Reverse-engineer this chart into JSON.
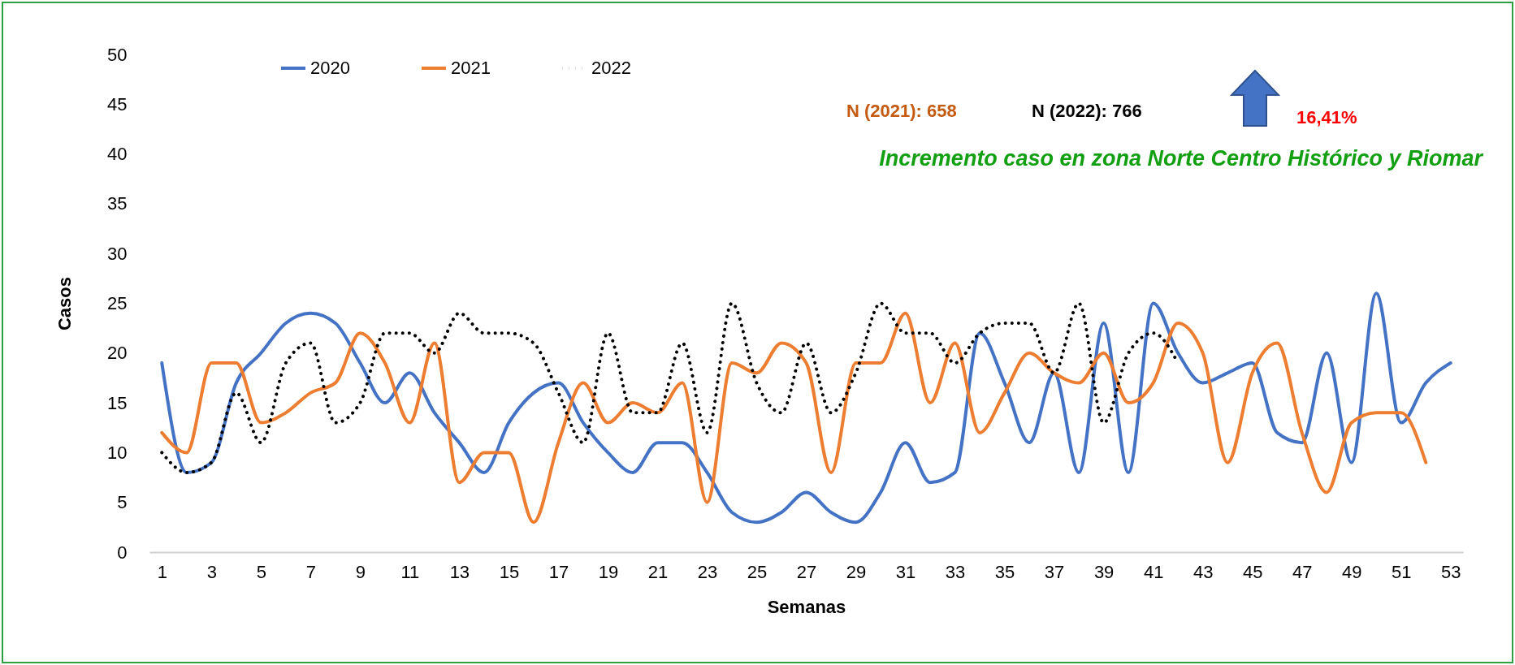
{
  "chart_data": {
    "type": "line",
    "xlabel": "Semanas",
    "ylabel": "Casos",
    "x": [
      1,
      2,
      3,
      4,
      5,
      6,
      7,
      8,
      9,
      10,
      11,
      12,
      13,
      14,
      15,
      16,
      17,
      18,
      19,
      20,
      21,
      22,
      23,
      24,
      25,
      26,
      27,
      28,
      29,
      30,
      31,
      32,
      33,
      34,
      35,
      36,
      37,
      38,
      39,
      40,
      41,
      42,
      43,
      44,
      45,
      46,
      47,
      48,
      49,
      50,
      51,
      52,
      53
    ],
    "series": [
      {
        "name": "2020",
        "color": "#4472c4",
        "line_style": "solid",
        "values": [
          19,
          8,
          9,
          17,
          20,
          23,
          24,
          23,
          19,
          15,
          18,
          14,
          11,
          8,
          13,
          16,
          17,
          13,
          10,
          8,
          11,
          11,
          8,
          4,
          3,
          4,
          6,
          4,
          3,
          6,
          11,
          7,
          8,
          22,
          17,
          11,
          18,
          8,
          23,
          8,
          25,
          20,
          17,
          18,
          19,
          12,
          11,
          20,
          9,
          26,
          13,
          17,
          19
        ]
      },
      {
        "name": "2021",
        "color": "#ed7d31",
        "line_style": "solid",
        "values": [
          12,
          10,
          19,
          19,
          13,
          14,
          16,
          17,
          22,
          19,
          13,
          21,
          7,
          10,
          10,
          3,
          11,
          17,
          13,
          15,
          14,
          17,
          5,
          19,
          18,
          21,
          19,
          8,
          19,
          19,
          24,
          15,
          21,
          12,
          16,
          20,
          18,
          17,
          20,
          15,
          17,
          23,
          20,
          9,
          18,
          21,
          12,
          6,
          13,
          14,
          14,
          9,
          null
        ]
      },
      {
        "name": "2022",
        "color": "#000000",
        "line_style": "dotted",
        "values": [
          10,
          8,
          9,
          16,
          11,
          19,
          21,
          13,
          15,
          22,
          22,
          20,
          24,
          22,
          22,
          21,
          16,
          11,
          22,
          14,
          14,
          21,
          12,
          25,
          17,
          14,
          21,
          14,
          18,
          25,
          22,
          22,
          19,
          22,
          23,
          23,
          18,
          25,
          13,
          20,
          22,
          19,
          null,
          null,
          null,
          null,
          null,
          null,
          null,
          null,
          null,
          null,
          null
        ]
      }
    ],
    "xlim": [
      0.5,
      53.5
    ],
    "xticks": [
      1,
      3,
      5,
      7,
      9,
      11,
      13,
      15,
      17,
      19,
      21,
      23,
      25,
      27,
      29,
      31,
      33,
      35,
      37,
      39,
      41,
      43,
      45,
      47,
      49,
      51,
      53
    ],
    "ylim": [
      0,
      50
    ],
    "yticks": [
      0,
      5,
      10,
      15,
      20,
      25,
      30,
      35,
      40,
      45,
      50
    ],
    "grid": false,
    "legend": "top",
    "annotations": [
      "N (2021): 658",
      "N (2022): 766",
      "16,41%",
      "Incremento caso en zona Norte Centro Histórico y Riomar"
    ]
  }
}
